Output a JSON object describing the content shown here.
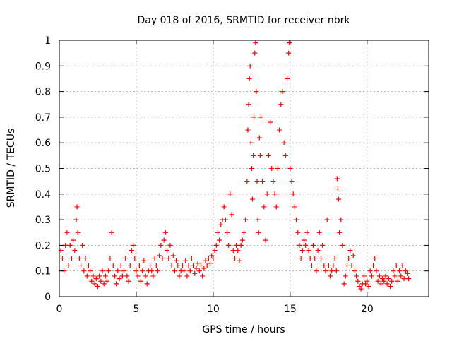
{
  "chart_data": {
    "type": "scatter",
    "title": "Day 018 of 2016, SRMTID for receiver nbrk",
    "xlabel": "GPS time / hours",
    "ylabel": "SRMTID / TECUs",
    "xlim": [
      0,
      24
    ],
    "ylim": [
      0,
      1
    ],
    "xticks": [
      0,
      5,
      10,
      15,
      20
    ],
    "yticks": [
      0,
      0.1,
      0.2,
      0.3,
      0.4,
      0.5,
      0.6,
      0.7,
      0.8,
      0.9,
      1
    ],
    "grid": true,
    "marker": "+",
    "color": "#ff0000",
    "series": [
      {
        "name": "SRMTID",
        "points": [
          [
            0.1,
            0.18
          ],
          [
            0.2,
            0.15
          ],
          [
            0.3,
            0.1
          ],
          [
            0.4,
            0.2
          ],
          [
            0.5,
            0.25
          ],
          [
            0.6,
            0.12
          ],
          [
            0.7,
            0.2
          ],
          [
            0.8,
            0.15
          ],
          [
            0.9,
            0.22
          ],
          [
            1.0,
            0.18
          ],
          [
            1.1,
            0.3
          ],
          [
            1.15,
            0.35
          ],
          [
            1.2,
            0.25
          ],
          [
            1.3,
            0.15
          ],
          [
            1.4,
            0.12
          ],
          [
            1.5,
            0.2
          ],
          [
            1.6,
            0.1
          ],
          [
            1.7,
            0.15
          ],
          [
            1.8,
            0.08
          ],
          [
            1.9,
            0.12
          ],
          [
            2.0,
            0.1
          ],
          [
            2.1,
            0.06
          ],
          [
            2.2,
            0.08
          ],
          [
            2.3,
            0.05
          ],
          [
            2.4,
            0.07
          ],
          [
            2.5,
            0.04
          ],
          [
            2.6,
            0.08
          ],
          [
            2.7,
            0.06
          ],
          [
            2.8,
            0.1
          ],
          [
            2.9,
            0.05
          ],
          [
            3.0,
            0.08
          ],
          [
            3.1,
            0.06
          ],
          [
            3.2,
            0.1
          ],
          [
            3.3,
            0.15
          ],
          [
            3.4,
            0.25
          ],
          [
            3.5,
            0.12
          ],
          [
            3.6,
            0.08
          ],
          [
            3.7,
            0.05
          ],
          [
            3.8,
            0.1
          ],
          [
            3.9,
            0.07
          ],
          [
            4.0,
            0.12
          ],
          [
            4.1,
            0.08
          ],
          [
            4.2,
            0.1
          ],
          [
            4.3,
            0.15
          ],
          [
            4.4,
            0.08
          ],
          [
            4.5,
            0.06
          ],
          [
            4.6,
            0.12
          ],
          [
            4.7,
            0.18
          ],
          [
            4.8,
            0.2
          ],
          [
            4.9,
            0.15
          ],
          [
            5.0,
            0.1
          ],
          [
            5.1,
            0.08
          ],
          [
            5.2,
            0.12
          ],
          [
            5.3,
            0.06
          ],
          [
            5.4,
            0.1
          ],
          [
            5.5,
            0.14
          ],
          [
            5.6,
            0.08
          ],
          [
            5.7,
            0.05
          ],
          [
            5.8,
            0.1
          ],
          [
            5.9,
            0.12
          ],
          [
            6.0,
            0.1
          ],
          [
            6.1,
            0.08
          ],
          [
            6.2,
            0.15
          ],
          [
            6.3,
            0.12
          ],
          [
            6.4,
            0.1
          ],
          [
            6.5,
            0.16
          ],
          [
            6.6,
            0.2
          ],
          [
            6.7,
            0.15
          ],
          [
            6.8,
            0.22
          ],
          [
            6.9,
            0.25
          ],
          [
            7.0,
            0.18
          ],
          [
            7.1,
            0.15
          ],
          [
            7.2,
            0.2
          ],
          [
            7.3,
            0.12
          ],
          [
            7.4,
            0.16
          ],
          [
            7.5,
            0.1
          ],
          [
            7.6,
            0.14
          ],
          [
            7.7,
            0.12
          ],
          [
            7.8,
            0.08
          ],
          [
            7.9,
            0.1
          ],
          [
            8.0,
            0.12
          ],
          [
            8.1,
            0.1
          ],
          [
            8.2,
            0.14
          ],
          [
            8.3,
            0.08
          ],
          [
            8.4,
            0.12
          ],
          [
            8.5,
            0.1
          ],
          [
            8.6,
            0.15
          ],
          [
            8.7,
            0.12
          ],
          [
            8.8,
            0.09
          ],
          [
            8.9,
            0.11
          ],
          [
            9.0,
            0.13
          ],
          [
            9.1,
            0.1
          ],
          [
            9.2,
            0.12
          ],
          [
            9.3,
            0.08
          ],
          [
            9.4,
            0.11
          ],
          [
            9.5,
            0.14
          ],
          [
            9.6,
            0.12
          ],
          [
            9.7,
            0.15
          ],
          [
            9.8,
            0.13
          ],
          [
            9.9,
            0.16
          ],
          [
            10.0,
            0.15
          ],
          [
            10.1,
            0.18
          ],
          [
            10.2,
            0.2
          ],
          [
            10.3,
            0.25
          ],
          [
            10.4,
            0.22
          ],
          [
            10.5,
            0.28
          ],
          [
            10.6,
            0.3
          ],
          [
            10.7,
            0.35
          ],
          [
            10.8,
            0.3
          ],
          [
            10.9,
            0.25
          ],
          [
            11.0,
            0.2
          ],
          [
            11.1,
            0.4
          ],
          [
            11.2,
            0.32
          ],
          [
            11.3,
            0.18
          ],
          [
            11.4,
            0.15
          ],
          [
            11.5,
            0.2
          ],
          [
            11.6,
            0.18
          ],
          [
            11.7,
            0.14
          ],
          [
            11.8,
            0.2
          ],
          [
            11.9,
            0.22
          ],
          [
            12.0,
            0.25
          ],
          [
            12.1,
            0.3
          ],
          [
            12.2,
            0.45
          ],
          [
            12.25,
            0.65
          ],
          [
            12.3,
            0.75
          ],
          [
            12.35,
            0.85
          ],
          [
            12.4,
            0.9
          ],
          [
            12.45,
            0.6
          ],
          [
            12.5,
            0.5
          ],
          [
            12.55,
            0.38
          ],
          [
            12.6,
            0.55
          ],
          [
            12.65,
            0.7
          ],
          [
            12.7,
            0.95
          ],
          [
            12.75,
            0.99
          ],
          [
            12.8,
            0.8
          ],
          [
            12.85,
            0.45
          ],
          [
            12.9,
            0.3
          ],
          [
            12.95,
            0.25
          ],
          [
            13.0,
            0.62
          ],
          [
            13.05,
            0.55
          ],
          [
            13.1,
            0.7
          ],
          [
            13.2,
            0.45
          ],
          [
            13.3,
            0.35
          ],
          [
            13.4,
            0.22
          ],
          [
            13.5,
            0.4
          ],
          [
            13.6,
            0.55
          ],
          [
            13.7,
            0.68
          ],
          [
            13.8,
            0.5
          ],
          [
            13.9,
            0.45
          ],
          [
            14.0,
            0.4
          ],
          [
            14.1,
            0.35
          ],
          [
            14.2,
            0.5
          ],
          [
            14.3,
            0.65
          ],
          [
            14.4,
            0.75
          ],
          [
            14.5,
            0.8
          ],
          [
            14.6,
            0.6
          ],
          [
            14.7,
            0.55
          ],
          [
            14.8,
            0.85
          ],
          [
            14.9,
            0.95
          ],
          [
            14.95,
            0.99
          ],
          [
            15.0,
            0.5
          ],
          [
            15.1,
            0.45
          ],
          [
            15.2,
            0.4
          ],
          [
            15.3,
            0.35
          ],
          [
            15.4,
            0.3
          ],
          [
            15.5,
            0.25
          ],
          [
            15.6,
            0.2
          ],
          [
            15.7,
            0.15
          ],
          [
            15.8,
            0.18
          ],
          [
            15.9,
            0.22
          ],
          [
            16.0,
            0.2
          ],
          [
            16.1,
            0.25
          ],
          [
            16.2,
            0.18
          ],
          [
            16.3,
            0.15
          ],
          [
            16.4,
            0.12
          ],
          [
            16.5,
            0.2
          ],
          [
            16.6,
            0.15
          ],
          [
            16.7,
            0.1
          ],
          [
            16.8,
            0.18
          ],
          [
            16.9,
            0.25
          ],
          [
            17.0,
            0.15
          ],
          [
            17.1,
            0.2
          ],
          [
            17.2,
            0.12
          ],
          [
            17.3,
            0.1
          ],
          [
            17.4,
            0.3
          ],
          [
            17.5,
            0.12
          ],
          [
            17.6,
            0.08
          ],
          [
            17.7,
            0.1
          ],
          [
            17.8,
            0.12
          ],
          [
            17.9,
            0.15
          ],
          [
            18.0,
            0.1
          ],
          [
            18.05,
            0.46
          ],
          [
            18.1,
            0.42
          ],
          [
            18.15,
            0.38
          ],
          [
            18.2,
            0.25
          ],
          [
            18.3,
            0.3
          ],
          [
            18.4,
            0.2
          ],
          [
            18.5,
            0.05
          ],
          [
            18.6,
            0.08
          ],
          [
            18.7,
            0.12
          ],
          [
            18.8,
            0.15
          ],
          [
            18.9,
            0.18
          ],
          [
            19.0,
            0.12
          ],
          [
            19.1,
            0.16
          ],
          [
            19.2,
            0.1
          ],
          [
            19.3,
            0.08
          ],
          [
            19.4,
            0.06
          ],
          [
            19.5,
            0.04
          ],
          [
            19.6,
            0.03
          ],
          [
            19.7,
            0.05
          ],
          [
            19.8,
            0.08
          ],
          [
            19.9,
            0.05
          ],
          [
            20.0,
            0.06
          ],
          [
            20.1,
            0.04
          ],
          [
            20.2,
            0.1
          ],
          [
            20.3,
            0.08
          ],
          [
            20.4,
            0.12
          ],
          [
            20.5,
            0.15
          ],
          [
            20.6,
            0.1
          ],
          [
            20.7,
            0.06
          ],
          [
            20.8,
            0.08
          ],
          [
            20.9,
            0.05
          ],
          [
            21.0,
            0.07
          ],
          [
            21.1,
            0.06
          ],
          [
            21.2,
            0.08
          ],
          [
            21.3,
            0.05
          ],
          [
            21.4,
            0.07
          ],
          [
            21.5,
            0.04
          ],
          [
            21.6,
            0.06
          ],
          [
            21.7,
            0.1
          ],
          [
            21.8,
            0.08
          ],
          [
            21.9,
            0.12
          ],
          [
            22.0,
            0.06
          ],
          [
            22.1,
            0.1
          ],
          [
            22.2,
            0.08
          ],
          [
            22.3,
            0.12
          ],
          [
            22.4,
            0.07
          ],
          [
            22.5,
            0.1
          ],
          [
            22.6,
            0.09
          ],
          [
            22.7,
            0.07
          ]
        ]
      }
    ]
  }
}
